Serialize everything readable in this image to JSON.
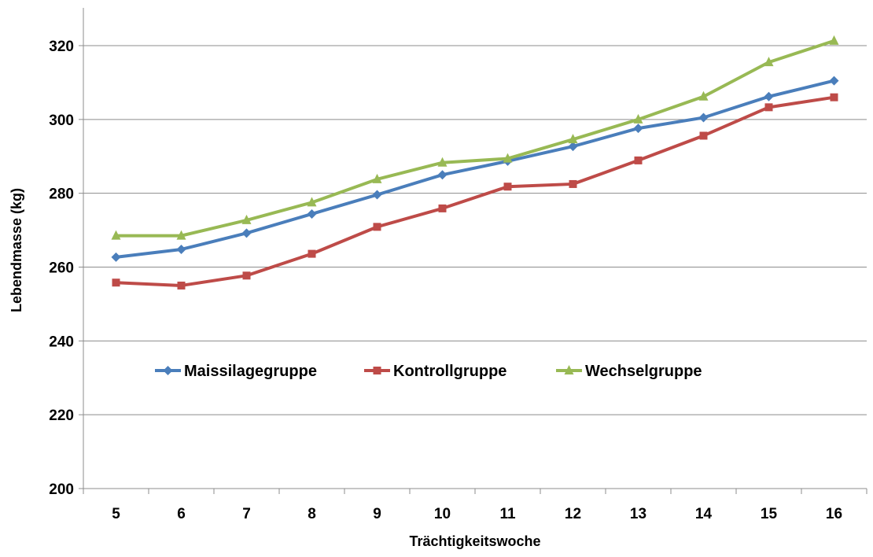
{
  "chart_data": {
    "type": "line",
    "title": "",
    "xlabel": "Trächtigkeitswoche",
    "ylabel": "Lebendmasse (kg)",
    "categories": [
      "5",
      "6",
      "7",
      "8",
      "9",
      "10",
      "11",
      "12",
      "13",
      "14",
      "15",
      "16"
    ],
    "ylim": [
      200,
      330
    ],
    "yticks": [
      200,
      220,
      240,
      260,
      280,
      300,
      320
    ],
    "grid": "horizontal",
    "legend_placement": "inside-center",
    "series": [
      {
        "name": "Maissilagegruppe",
        "color": "#4a7ebb",
        "marker": "diamond",
        "values": [
          262.7,
          264.8,
          269.2,
          274.4,
          279.6,
          285.0,
          288.7,
          292.7,
          297.6,
          300.5,
          306.2,
          310.5
        ]
      },
      {
        "name": "Kontrollgruppe",
        "color": "#be4b48",
        "marker": "square",
        "values": [
          255.8,
          255.0,
          257.7,
          263.6,
          270.9,
          275.9,
          281.8,
          282.5,
          288.9,
          295.6,
          303.3,
          306.0
        ]
      },
      {
        "name": "Wechselgruppe",
        "color": "#98b954",
        "marker": "triangle",
        "values": [
          268.5,
          268.5,
          272.7,
          277.5,
          283.8,
          288.3,
          289.4,
          294.6,
          300.0,
          306.2,
          315.5,
          321.3
        ]
      }
    ]
  }
}
